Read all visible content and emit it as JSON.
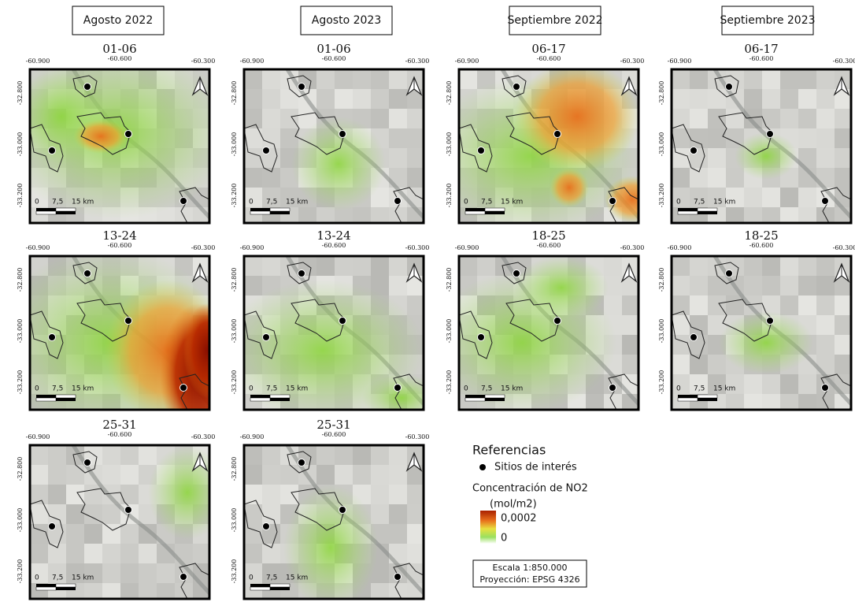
{
  "columns": [
    {
      "header": "Agosto 2022",
      "panels": [
        {
          "title": "01-06"
        },
        {
          "title": "13-24"
        },
        {
          "title": "25-31"
        }
      ]
    },
    {
      "header": "Agosto 2023",
      "panels": [
        {
          "title": "01-06"
        },
        {
          "title": "13-24"
        },
        {
          "title": "25-31"
        }
      ]
    },
    {
      "header": "Septiembre 2022",
      "panels": [
        {
          "title": "06-17"
        },
        {
          "title": "18-25"
        }
      ]
    },
    {
      "header": "Septiembre 2023",
      "panels": [
        {
          "title": "06-17"
        },
        {
          "title": "18-25"
        }
      ]
    }
  ],
  "map": {
    "x_ticks": [
      "-60.900",
      "-60.600",
      "-60.300"
    ],
    "y_ticks": [
      "-32.800",
      "-33.000",
      "-33.200"
    ],
    "scale_labels": [
      "0",
      "7,5",
      "15 km"
    ]
  },
  "legend": {
    "title": "Referencias",
    "sites": "Sitios de interés",
    "concentration": "Concentración de NO2",
    "unit": "(mol/m2)",
    "max_label": "0,0002",
    "min_label": "0",
    "scale": "Escala 1:850.000",
    "projection": "Proyección: EPSG 4326"
  }
}
